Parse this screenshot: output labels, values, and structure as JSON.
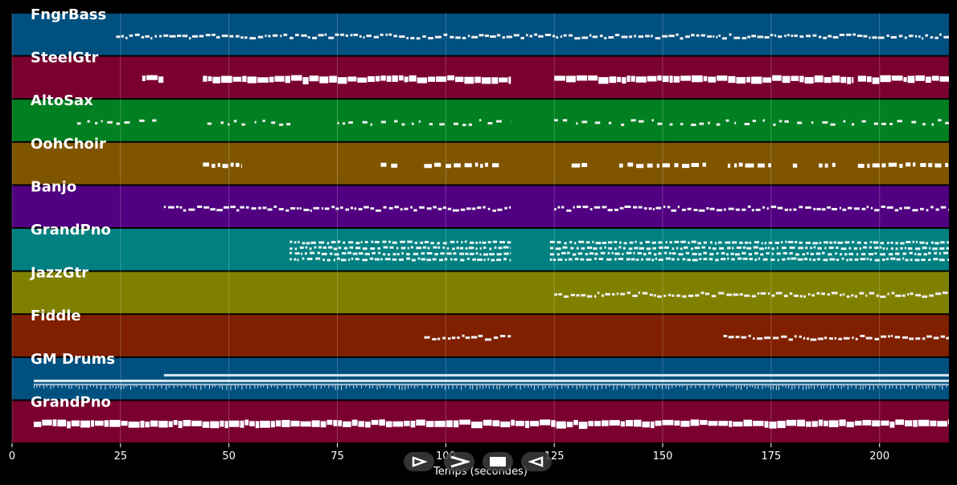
{
  "chart_data": {
    "type": "piano-roll",
    "xlabel": "Temps (secondes)",
    "xlim": [
      0,
      216
    ],
    "xticks": [
      0,
      25,
      50,
      75,
      100,
      125,
      150,
      175,
      200
    ],
    "grid": true,
    "tracks": [
      {
        "name": "FngrBass",
        "color": "#005080",
        "style": "thin",
        "segments": [
          [
            24,
            216
          ]
        ]
      },
      {
        "name": "SteelGtr",
        "color": "#7a0030",
        "style": "thick",
        "segments": [
          [
            30,
            35
          ],
          [
            44,
            115
          ],
          [
            125,
            194
          ],
          [
            195,
            216
          ]
        ]
      },
      {
        "name": "AltoSax",
        "color": "#008020",
        "style": "sparse",
        "segments": [
          [
            15,
            35
          ],
          [
            45,
            65
          ],
          [
            75,
            115
          ],
          [
            125,
            216
          ]
        ]
      },
      {
        "name": "OohChoir",
        "color": "#805500",
        "style": "blocks",
        "segments": [
          [
            44,
            53
          ],
          [
            85,
            89
          ],
          [
            95,
            113
          ],
          [
            129,
            133
          ],
          [
            140,
            160
          ],
          [
            165,
            175
          ],
          [
            180,
            181
          ],
          [
            186,
            190
          ],
          [
            195,
            216
          ]
        ]
      },
      {
        "name": "Banjo",
        "color": "#500080",
        "style": "thin",
        "segments": [
          [
            35,
            115
          ],
          [
            125,
            216
          ]
        ]
      },
      {
        "name": "GrandPno",
        "color": "#008080",
        "style": "dense",
        "segments": [
          [
            64,
            115
          ],
          [
            124,
            216
          ]
        ]
      },
      {
        "name": "JazzGtr",
        "color": "#808000",
        "style": "thin",
        "segments": [
          [
            125,
            216
          ]
        ]
      },
      {
        "name": "Fiddle",
        "color": "#802000",
        "style": "thin",
        "segments": [
          [
            95,
            115
          ],
          [
            164,
            216
          ]
        ]
      },
      {
        "name": "GM Drums",
        "color": "#005080",
        "style": "drums",
        "segments": [
          [
            5,
            216
          ]
        ]
      },
      {
        "name": "GrandPno",
        "color": "#7a0030",
        "style": "thick",
        "segments": [
          [
            5,
            216
          ]
        ]
      }
    ]
  },
  "playback": {
    "play_icon": "play-icon",
    "forward_icon": "fast-forward-icon",
    "stop_icon": "stop-icon",
    "rewind_icon": "rewind-icon"
  }
}
